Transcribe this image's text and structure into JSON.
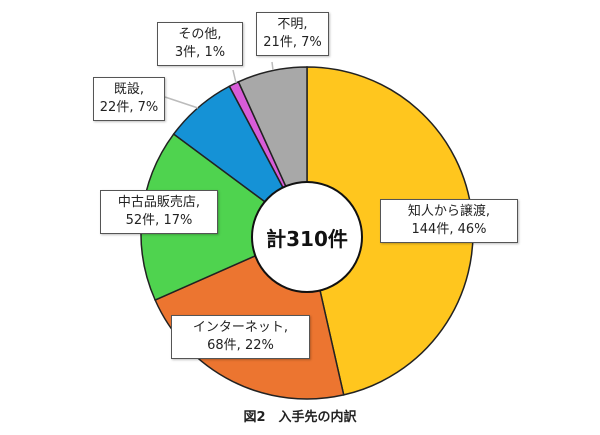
{
  "chart_data": {
    "type": "pie",
    "donut": true,
    "title": "",
    "caption": "図2　入手先の内訳",
    "center_label": "計310件",
    "start": "top, clockwise",
    "slices": [
      {
        "name": "知人から譲渡",
        "count": 144,
        "percent": 46,
        "line1": "知人から譲渡,",
        "line2": "144件, 46%",
        "color": "#FFC61E"
      },
      {
        "name": "インターネット",
        "count": 68,
        "percent": 22,
        "line1": "インターネット,",
        "line2": "68件, 22%",
        "color": "#EC7530"
      },
      {
        "name": "中古品販売店",
        "count": 52,
        "percent": 17,
        "line1": "中古品販売店,",
        "line2": "52件, 17%",
        "color": "#4FD34F"
      },
      {
        "name": "既設",
        "count": 22,
        "percent": 7,
        "line1": "既設,",
        "line2": "22件, 7%",
        "color": "#1592D6"
      },
      {
        "name": "その他",
        "count": 3,
        "percent": 1,
        "line1": "その他,",
        "line2": "3件, 1%",
        "color": "#D85CD8"
      },
      {
        "name": "不明",
        "count": 21,
        "percent": 7,
        "line1": "不明,",
        "line2": "21件, 7%",
        "color": "#A8A8A8"
      }
    ]
  }
}
